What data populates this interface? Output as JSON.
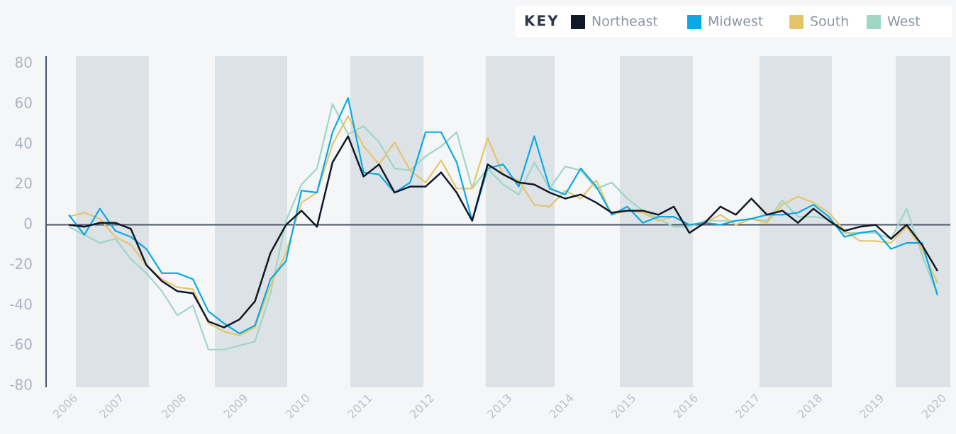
{
  "chart_data": {
    "type": "line",
    "legend_title": "KEY",
    "legend": "top-right",
    "categories": [
      "2006",
      null,
      null,
      "2007",
      null,
      null,
      null,
      "2008",
      null,
      null,
      null,
      "2009",
      null,
      null,
      null,
      "2010",
      null,
      null,
      null,
      "2011",
      null,
      null,
      null,
      "2012",
      null,
      null,
      null,
      null,
      "2013",
      null,
      null,
      null,
      "2014",
      null,
      null,
      null,
      "2015",
      null,
      null,
      null,
      "2016",
      null,
      null,
      null,
      "2017",
      null,
      null,
      null,
      "2018",
      null,
      null,
      null,
      "2019",
      null,
      null,
      null,
      "2020"
    ],
    "series": [
      {
        "name": "Northeast",
        "color": "#111827",
        "values": [
          0,
          -1,
          1,
          1,
          -2,
          -20,
          -28,
          -33,
          -34,
          -48,
          -51,
          -47,
          -38,
          -14,
          0,
          7,
          -1,
          31,
          44,
          24,
          30,
          16,
          19,
          19,
          26,
          16,
          2,
          30,
          25,
          21,
          20,
          16,
          13,
          15,
          11,
          6,
          7,
          7,
          5,
          9,
          -4,
          1,
          9,
          5,
          13,
          5,
          7,
          1,
          8,
          2,
          -3,
          -1,
          0,
          -7,
          0,
          -10,
          -23
        ]
      },
      {
        "name": "Midwest",
        "color": "#0aa9e6",
        "values": [
          5,
          -5,
          8,
          -3,
          -6,
          -12,
          -24,
          -24,
          -27,
          -43,
          -49,
          -54,
          -50,
          -27,
          -18,
          17,
          16,
          46,
          63,
          26,
          25,
          16,
          21,
          46,
          46,
          31,
          2,
          28,
          30,
          19,
          44,
          18,
          15,
          28,
          19,
          5,
          9,
          1,
          4,
          4,
          0,
          1,
          0,
          2,
          3,
          5,
          5,
          6,
          10,
          4,
          -6,
          -4,
          -3,
          -12,
          -9,
          -9,
          -35
        ]
      },
      {
        "name": "South",
        "color": "#e6c56a",
        "values": [
          4,
          6,
          3,
          -6,
          -10,
          -20,
          -27,
          -31,
          -32,
          -49,
          -53,
          -55,
          -51,
          -30,
          -14,
          11,
          16,
          40,
          54,
          39,
          30,
          41,
          27,
          21,
          32,
          18,
          18,
          43,
          25,
          22,
          10,
          9,
          17,
          13,
          22,
          5,
          7,
          6,
          2,
          4,
          0,
          1,
          5,
          0,
          3,
          1,
          10,
          14,
          11,
          6,
          -3,
          -8,
          -8,
          -9,
          -1,
          -12,
          -29
        ]
      },
      {
        "name": "West",
        "color": "#9fd6c6",
        "values": [
          -1,
          -5,
          -9,
          -7,
          -17,
          -24,
          -33,
          -45,
          -40,
          -62,
          -62,
          -60,
          -58,
          -34,
          2,
          20,
          28,
          60,
          45,
          49,
          41,
          28,
          27,
          34,
          39,
          46,
          18,
          28,
          20,
          15,
          31,
          18,
          29,
          27,
          18,
          21,
          13,
          7,
          3,
          -1,
          -1,
          2,
          2,
          2,
          3,
          2,
          12,
          4,
          4,
          3,
          -4,
          -4,
          -4,
          -7,
          8,
          -15,
          -35
        ]
      }
    ],
    "ylim": [
      -80,
      80
    ],
    "yticks": [
      -80,
      -60,
      -40,
      -20,
      0,
      20,
      40,
      60,
      80
    ]
  }
}
